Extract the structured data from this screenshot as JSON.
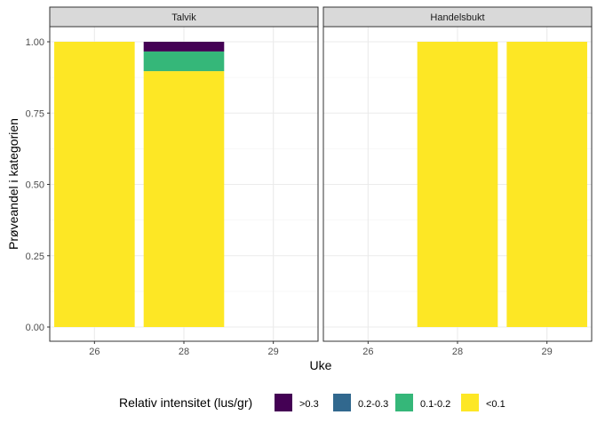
{
  "chart_data": {
    "type": "bar",
    "stacked": true,
    "facets": [
      "Talvik",
      "Handelsbukt"
    ],
    "categories": [
      "26",
      "28",
      "29"
    ],
    "xlabel": "Uke",
    "ylabel": "Prøveandel i kategorien",
    "ylim": [
      0,
      1
    ],
    "yticks": [
      "0.00",
      "0.25",
      "0.50",
      "0.75",
      "1.00"
    ],
    "grid": true,
    "legend": {
      "title": "Relativ intensitet (lus/gr)",
      "position": "bottom",
      "items": [
        {
          "label": ">0.3",
          "color": "#440154"
        },
        {
          "label": "0.2-0.3",
          "color": "#31688E"
        },
        {
          "label": "0.1-0.2",
          "color": "#35B779"
        },
        {
          "label": "<0.1",
          "color": "#FDE725"
        }
      ]
    },
    "series": [
      {
        "name": ">0.3",
        "color": "#440154",
        "values": {
          "Talvik": [
            0,
            0.034,
            null
          ],
          "Handelsbukt": [
            null,
            0,
            0
          ]
        }
      },
      {
        "name": "0.2-0.3",
        "color": "#31688E",
        "values": {
          "Talvik": [
            0,
            0,
            null
          ],
          "Handelsbukt": [
            null,
            0,
            0
          ]
        }
      },
      {
        "name": "0.1-0.2",
        "color": "#35B779",
        "values": {
          "Talvik": [
            0,
            0.069,
            null
          ],
          "Handelsbukt": [
            null,
            0,
            0
          ]
        }
      },
      {
        "name": "<0.1",
        "color": "#FDE725",
        "values": {
          "Talvik": [
            1,
            0.897,
            null
          ],
          "Handelsbukt": [
            null,
            1,
            1
          ]
        }
      }
    ]
  }
}
